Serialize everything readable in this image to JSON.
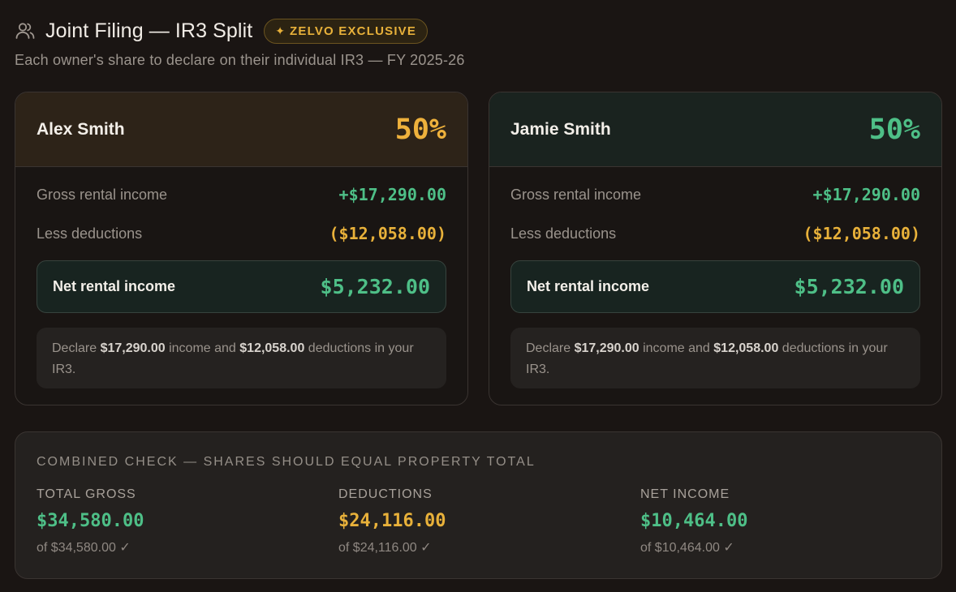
{
  "header": {
    "title": "Joint Filing — IR3 Split",
    "badge_icon": "✦",
    "badge": "ZELVO EXCLUSIVE",
    "subtitle": "Each owner's share to declare on their individual IR3 — FY 2025-26"
  },
  "owners": [
    {
      "name": "Alex Smith",
      "share": "50%",
      "gross_label": "Gross rental income",
      "gross_value": "+$17,290.00",
      "deductions_label": "Less deductions",
      "deductions_value": "($12,058.00)",
      "net_label": "Net rental income",
      "net_value": "$5,232.00",
      "note": {
        "prefix": "Declare ",
        "income": "$17,290.00",
        "middle": " income and ",
        "deductions": "$12,058.00",
        "suffix": " deductions in your IR3."
      },
      "accent": "#eeb13c"
    },
    {
      "name": "Jamie Smith",
      "share": "50%",
      "gross_label": "Gross rental income",
      "gross_value": "+$17,290.00",
      "deductions_label": "Less deductions",
      "deductions_value": "($12,058.00)",
      "net_label": "Net rental income",
      "net_value": "$5,232.00",
      "note": {
        "prefix": "Declare ",
        "income": "$17,290.00",
        "middle": " income and ",
        "deductions": "$12,058.00",
        "suffix": " deductions in your IR3."
      },
      "accent": "#4ebf87"
    }
  ],
  "combined": {
    "title": "COMBINED CHECK — SHARES SHOULD EQUAL PROPERTY TOTAL",
    "columns": [
      {
        "label": "TOTAL GROSS",
        "value": "$34,580.00",
        "check": "of $34,580.00 ✓"
      },
      {
        "label": "DEDUCTIONS",
        "value": "$24,116.00",
        "check": "of $24,116.00 ✓"
      },
      {
        "label": "NET INCOME",
        "value": "$10,464.00",
        "check": "of $10,464.00 ✓"
      }
    ]
  },
  "icons": {
    "header_icon": "users-icon"
  },
  "colors": {
    "green": "#4ebf87",
    "amber": "#e8b13a",
    "background": "#1a1513"
  }
}
